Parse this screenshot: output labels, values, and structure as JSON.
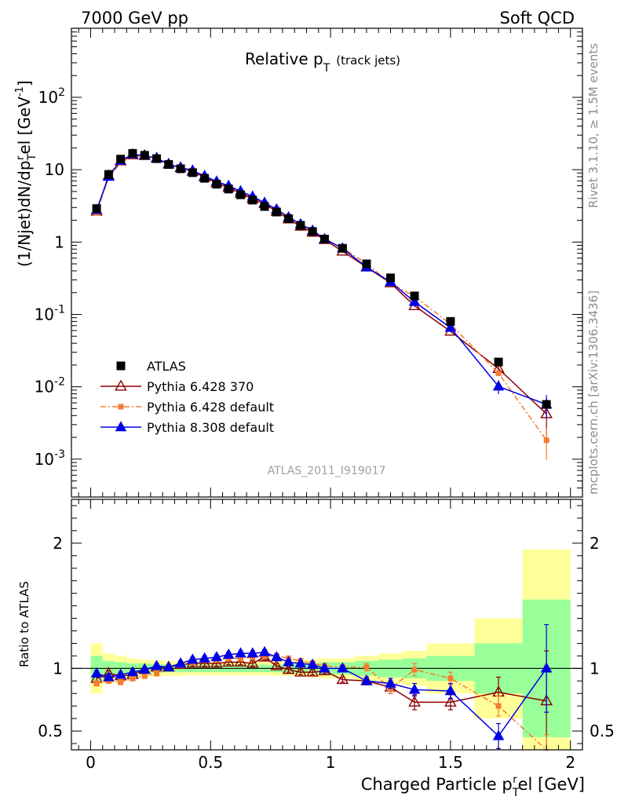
{
  "header": {
    "left": "7000 GeV pp",
    "right": "Soft QCD"
  },
  "side": {
    "rivet": "Rivet 3.1.10, ≥ 1.5M events",
    "mcplots": "mcplots.cern.ch [arXiv:1306.3436]"
  },
  "chart_data": {
    "type": "scatter",
    "title": "Relative p",
    "title_sub": "T",
    "title_note": "(track jets)",
    "analysis_id": "ATLAS_2011_I919017",
    "xlabel": "Charged Particle p",
    "xlabel_sub": "T",
    "xlabel_sup": "r",
    "xlabel_tail": "el [GeV]",
    "ylabel_prefix": "(1/Njet)dN/dp",
    "ylabel_sub": "T",
    "ylabel_sup": "r",
    "ylabel_unit": "el [GeV",
    "ylabel_unit_sup": "-1",
    "ylabel_close": "]",
    "ratio_ylabel": "Ratio to ATLAS",
    "xlim": [
      -0.08,
      2.05
    ],
    "ylim": [
      0.0003,
      900
    ],
    "yscale": "log",
    "ratio_ylim": [
      0.35,
      2.35
    ],
    "x_ticks": [
      "0",
      "0.5",
      "1",
      "1.5",
      "2"
    ],
    "y_ticks": [
      {
        "base": "10",
        "exp": "-3"
      },
      {
        "base": "10",
        "exp": "-2"
      },
      {
        "base": "10",
        "exp": "-1"
      },
      {
        "base": "1",
        "exp": ""
      },
      {
        "base": "10",
        "exp": ""
      },
      {
        "base": "10",
        "exp": "2"
      }
    ],
    "ratio_ticks": [
      "0.5",
      "1",
      "2"
    ],
    "x": [
      0.025,
      0.075,
      0.125,
      0.175,
      0.225,
      0.275,
      0.325,
      0.375,
      0.425,
      0.475,
      0.525,
      0.575,
      0.625,
      0.675,
      0.725,
      0.775,
      0.825,
      0.875,
      0.925,
      0.975,
      1.05,
      1.15,
      1.25,
      1.35,
      1.5,
      1.7,
      1.9
    ],
    "bin_edges": [
      0,
      0.05,
      0.1,
      0.15,
      0.2,
      0.25,
      0.3,
      0.35,
      0.4,
      0.45,
      0.5,
      0.55,
      0.6,
      0.65,
      0.7,
      0.75,
      0.8,
      0.85,
      0.9,
      0.95,
      1.0,
      1.1,
      1.2,
      1.3,
      1.4,
      1.6,
      1.8,
      2.0
    ],
    "band_stat": [
      0.1,
      0.06,
      0.05,
      0.04,
      0.04,
      0.035,
      0.03,
      0.03,
      0.03,
      0.03,
      0.03,
      0.03,
      0.03,
      0.03,
      0.03,
      0.03,
      0.035,
      0.04,
      0.04,
      0.05,
      0.05,
      0.06,
      0.07,
      0.08,
      0.1,
      0.2,
      0.55
    ],
    "band_total": [
      0.2,
      0.12,
      0.1,
      0.08,
      0.07,
      0.065,
      0.06,
      0.06,
      0.055,
      0.055,
      0.055,
      0.055,
      0.055,
      0.055,
      0.055,
      0.06,
      0.06,
      0.065,
      0.07,
      0.08,
      0.08,
      0.1,
      0.12,
      0.14,
      0.2,
      0.4,
      0.95
    ],
    "legend_position": "lower-left",
    "series": [
      {
        "name": "ATLAS",
        "color": "#000000",
        "marker": "square",
        "values": [
          2.9,
          8.6,
          14.0,
          16.8,
          15.8,
          14.2,
          11.8,
          10.3,
          9.1,
          7.6,
          6.3,
          5.4,
          4.5,
          3.8,
          3.1,
          2.6,
          2.1,
          1.7,
          1.4,
          1.1,
          0.82,
          0.5,
          0.32,
          0.18,
          0.08,
          0.022,
          0.0057
        ]
      },
      {
        "name": "Pythia 6.428 370",
        "color": "#8b0000",
        "marker": "open-triangle",
        "line": "solid",
        "ratio": [
          0.92,
          0.96,
          0.94,
          0.95,
          0.99,
          1.01,
          1.01,
          1.03,
          1.04,
          1.04,
          1.04,
          1.05,
          1.05,
          1.04,
          1.09,
          1.02,
          0.99,
          0.97,
          0.97,
          0.98,
          0.91,
          0.9,
          0.85,
          0.73,
          0.73,
          0.81,
          0.74
        ],
        "ratio_err": [
          0.02,
          0.02,
          0.02,
          0.02,
          0.02,
          0.02,
          0.02,
          0.02,
          0.02,
          0.02,
          0.02,
          0.02,
          0.02,
          0.02,
          0.02,
          0.02,
          0.02,
          0.02,
          0.02,
          0.02,
          0.02,
          0.03,
          0.05,
          0.06,
          0.06,
          0.12,
          0.4
        ]
      },
      {
        "name": "Pythia 6.428 default",
        "color": "#f47c30",
        "marker": "square",
        "line": "dash-dot",
        "ratio": [
          0.88,
          0.9,
          0.89,
          0.92,
          0.94,
          0.96,
          1.01,
          1.03,
          1.05,
          1.07,
          1.07,
          1.08,
          1.08,
          1.09,
          1.1,
          1.1,
          1.08,
          1.06,
          1.04,
          1.02,
          1.01,
          1.01,
          0.84,
          0.99,
          0.92,
          0.7,
          0.32
        ],
        "ratio_err": [
          0.02,
          0.02,
          0.02,
          0.02,
          0.02,
          0.02,
          0.02,
          0.02,
          0.02,
          0.02,
          0.02,
          0.02,
          0.02,
          0.02,
          0.02,
          0.02,
          0.02,
          0.02,
          0.02,
          0.02,
          0.02,
          0.03,
          0.04,
          0.05,
          0.05,
          0.08,
          0.15
        ]
      },
      {
        "name": "Pythia 8.308 default",
        "color": "#0000e6",
        "marker": "triangle",
        "line": "solid",
        "ratio": [
          0.96,
          0.93,
          0.95,
          0.97,
          0.99,
          1.02,
          1.01,
          1.04,
          1.07,
          1.08,
          1.09,
          1.11,
          1.12,
          1.12,
          1.13,
          1.09,
          1.05,
          1.04,
          1.03,
          1.0,
          1.0,
          0.9,
          0.88,
          0.83,
          0.82,
          0.46,
          1.0
        ],
        "ratio_err": [
          0.02,
          0.02,
          0.02,
          0.02,
          0.02,
          0.02,
          0.02,
          0.02,
          0.02,
          0.02,
          0.02,
          0.02,
          0.02,
          0.02,
          0.02,
          0.02,
          0.02,
          0.02,
          0.02,
          0.02,
          0.02,
          0.03,
          0.04,
          0.05,
          0.06,
          0.1,
          0.35
        ]
      }
    ]
  }
}
